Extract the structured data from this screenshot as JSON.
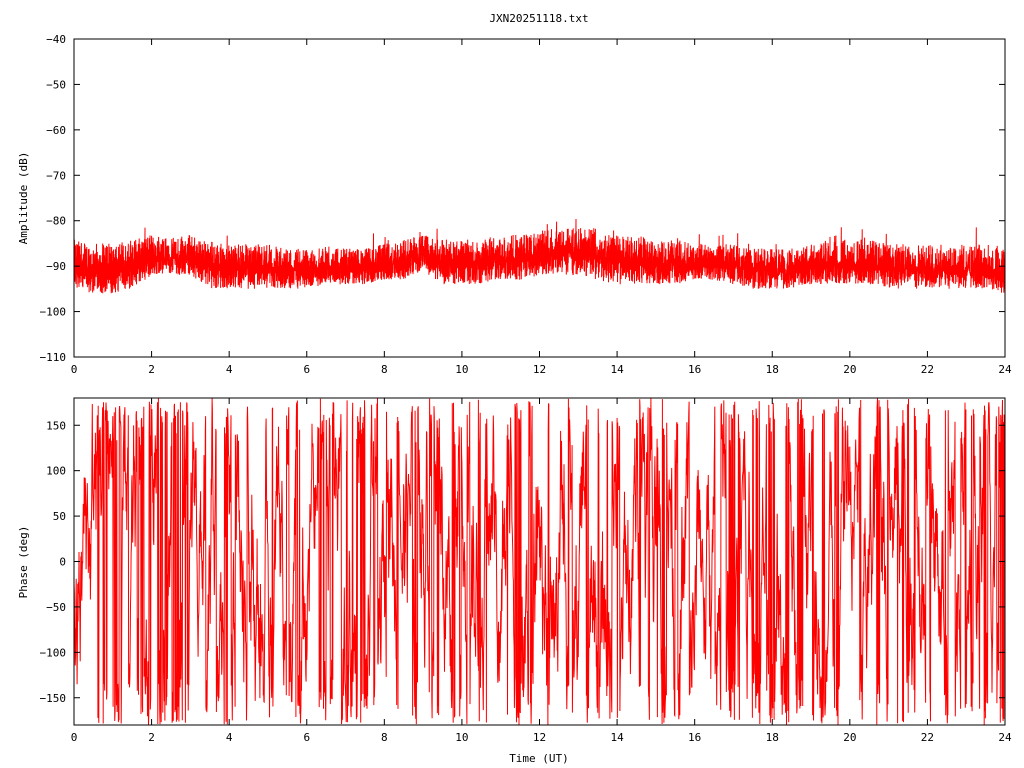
{
  "chart_data": [
    {
      "type": "line",
      "title": "JXN20251118.txt",
      "xlabel": "",
      "ylabel": "Amplitude (dB)",
      "xlim": [
        0,
        24
      ],
      "ylim": [
        -110,
        -40
      ],
      "xticks": [
        0,
        2,
        4,
        6,
        8,
        10,
        12,
        14,
        16,
        18,
        20,
        22,
        24
      ],
      "yticks": [
        -40,
        -50,
        -60,
        -70,
        -80,
        -90,
        -100,
        -110
      ],
      "grid": false,
      "line_color": "#ff0000",
      "series": [
        {
          "x": [
            0,
            0.5,
            1,
            1.5,
            2,
            2.5,
            3,
            3.5,
            4,
            4.5,
            5,
            5.5,
            6,
            6.5,
            7,
            7.5,
            8,
            8.5,
            9,
            9.5,
            10,
            10.5,
            11,
            11.5,
            12,
            12.5,
            13,
            13.5,
            14,
            14.5,
            15,
            15.5,
            16,
            16.5,
            17,
            17.5,
            18,
            18.5,
            19,
            19.5,
            20,
            20.5,
            21,
            21.5,
            22,
            22.5,
            23,
            23.5,
            24
          ],
          "upper": [
            -84,
            -85,
            -84,
            -84,
            -83,
            -83,
            -83,
            -84,
            -85,
            -85,
            -85,
            -86,
            -86,
            -86,
            -86,
            -86,
            -85,
            -84,
            -83,
            -84,
            -84,
            -84,
            -83,
            -83,
            -82,
            -81,
            -81,
            -82,
            -83,
            -83,
            -84,
            -84,
            -85,
            -85,
            -85,
            -86,
            -86,
            -86,
            -85,
            -84,
            -84,
            -84,
            -85,
            -85,
            -85,
            -85,
            -85,
            -85,
            -86
          ],
          "lower": [
            -95,
            -96,
            -96,
            -95,
            -92,
            -92,
            -92,
            -95,
            -95,
            -95,
            -95,
            -95,
            -95,
            -94,
            -94,
            -94,
            -93,
            -93,
            -91,
            -94,
            -94,
            -94,
            -93,
            -93,
            -92,
            -92,
            -92,
            -93,
            -94,
            -94,
            -94,
            -94,
            -93,
            -93,
            -94,
            -95,
            -95,
            -95,
            -94,
            -94,
            -94,
            -94,
            -95,
            -95,
            -95,
            -95,
            -95,
            -95,
            -96
          ]
        }
      ]
    },
    {
      "type": "line",
      "title": "",
      "xlabel": "Time (UT)",
      "ylabel": "Phase (deg)",
      "xlim": [
        0,
        24
      ],
      "ylim": [
        -180,
        180
      ],
      "xticks": [
        0,
        2,
        4,
        6,
        8,
        10,
        12,
        14,
        16,
        18,
        20,
        22,
        24
      ],
      "yticks": [
        150,
        100,
        50,
        0,
        -50,
        -100,
        -150
      ],
      "grid": false,
      "line_color": "#ff0000",
      "series": [
        {
          "x": [
            0,
            24
          ],
          "y_range": [
            -180,
            180
          ]
        }
      ]
    }
  ]
}
